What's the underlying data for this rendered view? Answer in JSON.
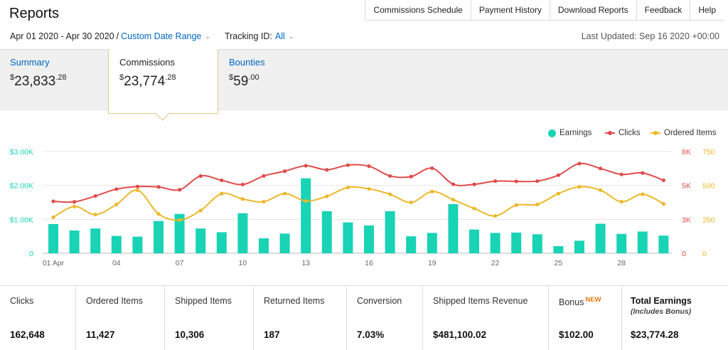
{
  "page": {
    "title": "Reports"
  },
  "nav": [
    "Commissions Schedule",
    "Payment History",
    "Download Reports",
    "Feedback",
    "Help"
  ],
  "filters": {
    "date_range": "Apr 01 2020 - Apr 30 2020",
    "separator": "/",
    "custom_range_link": "Custom Date Range",
    "tracking_label": "Tracking ID:",
    "tracking_value": "All",
    "last_updated": "Last Updated: Sep 16 2020 +00:00"
  },
  "tabs": {
    "summary": {
      "label": "Summary",
      "currency": "$",
      "whole": "23,833",
      "cents": ".28"
    },
    "commissions": {
      "label": "Commissions",
      "currency": "$",
      "whole": "23,774",
      "cents": ".28"
    },
    "bounties": {
      "label": "Bounties",
      "currency": "$",
      "whole": "59",
      "cents": ".00"
    }
  },
  "colors": {
    "earnings": "#19d3b5",
    "clicks": "#e04b4b",
    "ordered_items": "#ebb828",
    "link": "#0066c0",
    "new_badge": "#e47911"
  },
  "chart_data": {
    "type": "bar",
    "legend": [
      "Earnings",
      "Clicks",
      "Ordered Items"
    ],
    "legend_position": "top-right",
    "x_tick_labels": [
      "01 Apr",
      "04",
      "07",
      "10",
      "13",
      "16",
      "19",
      "22",
      "25",
      "28"
    ],
    "x": [
      1,
      2,
      3,
      4,
      5,
      6,
      7,
      8,
      9,
      10,
      11,
      12,
      13,
      14,
      15,
      16,
      17,
      18,
      19,
      20,
      21,
      22,
      23,
      24,
      25,
      26,
      27,
      28,
      29,
      30
    ],
    "y_left": {
      "ticks": [
        "0",
        "$1.00K",
        "$2.00K",
        "$3.00K"
      ],
      "range": [
        0,
        3000
      ],
      "color": "#19d3b5"
    },
    "y_right_clicks": {
      "ticks": [
        "0",
        "3K",
        "5K",
        "8K"
      ],
      "range": [
        0,
        7500
      ],
      "color": "#e04b4b"
    },
    "y_right_items": {
      "ticks": [
        "0",
        "250",
        "500",
        "750"
      ],
      "range": [
        0,
        750
      ],
      "color": "#ebb828"
    },
    "grid": true,
    "series": [
      {
        "name": "Earnings",
        "type": "bar",
        "axis": "y_left",
        "values": [
          860,
          670,
          730,
          510,
          490,
          950,
          1160,
          730,
          620,
          1180,
          440,
          580,
          2210,
          1240,
          910,
          820,
          1240,
          500,
          600,
          1450,
          700,
          600,
          610,
          560,
          210,
          370,
          870,
          570,
          640,
          520
        ]
      },
      {
        "name": "Clicks",
        "type": "line",
        "axis": "y_right_clicks",
        "values": [
          3830,
          3790,
          4220,
          4730,
          4920,
          4890,
          4680,
          5690,
          5380,
          5070,
          5700,
          6050,
          6450,
          6150,
          6500,
          6420,
          5700,
          5650,
          6270,
          5090,
          5080,
          5320,
          5300,
          5320,
          5760,
          6610,
          6250,
          5810,
          5920,
          5380
        ]
      },
      {
        "name": "Ordered Items",
        "type": "line",
        "axis": "y_right_items",
        "values": [
          265,
          345,
          285,
          360,
          465,
          290,
          245,
          315,
          440,
          400,
          380,
          440,
          385,
          420,
          485,
          475,
          435,
          375,
          455,
          395,
          330,
          275,
          355,
          360,
          440,
          490,
          465,
          380,
          435,
          365
        ]
      }
    ]
  },
  "stats": [
    {
      "label": "Clicks",
      "value": "162,648"
    },
    {
      "label": "Ordered Items",
      "value": "11,427"
    },
    {
      "label": "Shipped Items",
      "value": "10,306"
    },
    {
      "label": "Returned Items",
      "value": "187"
    },
    {
      "label": "Conversion",
      "value": "7.03%"
    },
    {
      "label": "Shipped Items Revenue",
      "value": "$481,100.02"
    },
    {
      "label": "Bonus",
      "badge": "NEW",
      "value": "$102.00"
    },
    {
      "label": "Total Earnings",
      "note": "(Includes Bonus)",
      "value": "$23,774.28"
    }
  ]
}
